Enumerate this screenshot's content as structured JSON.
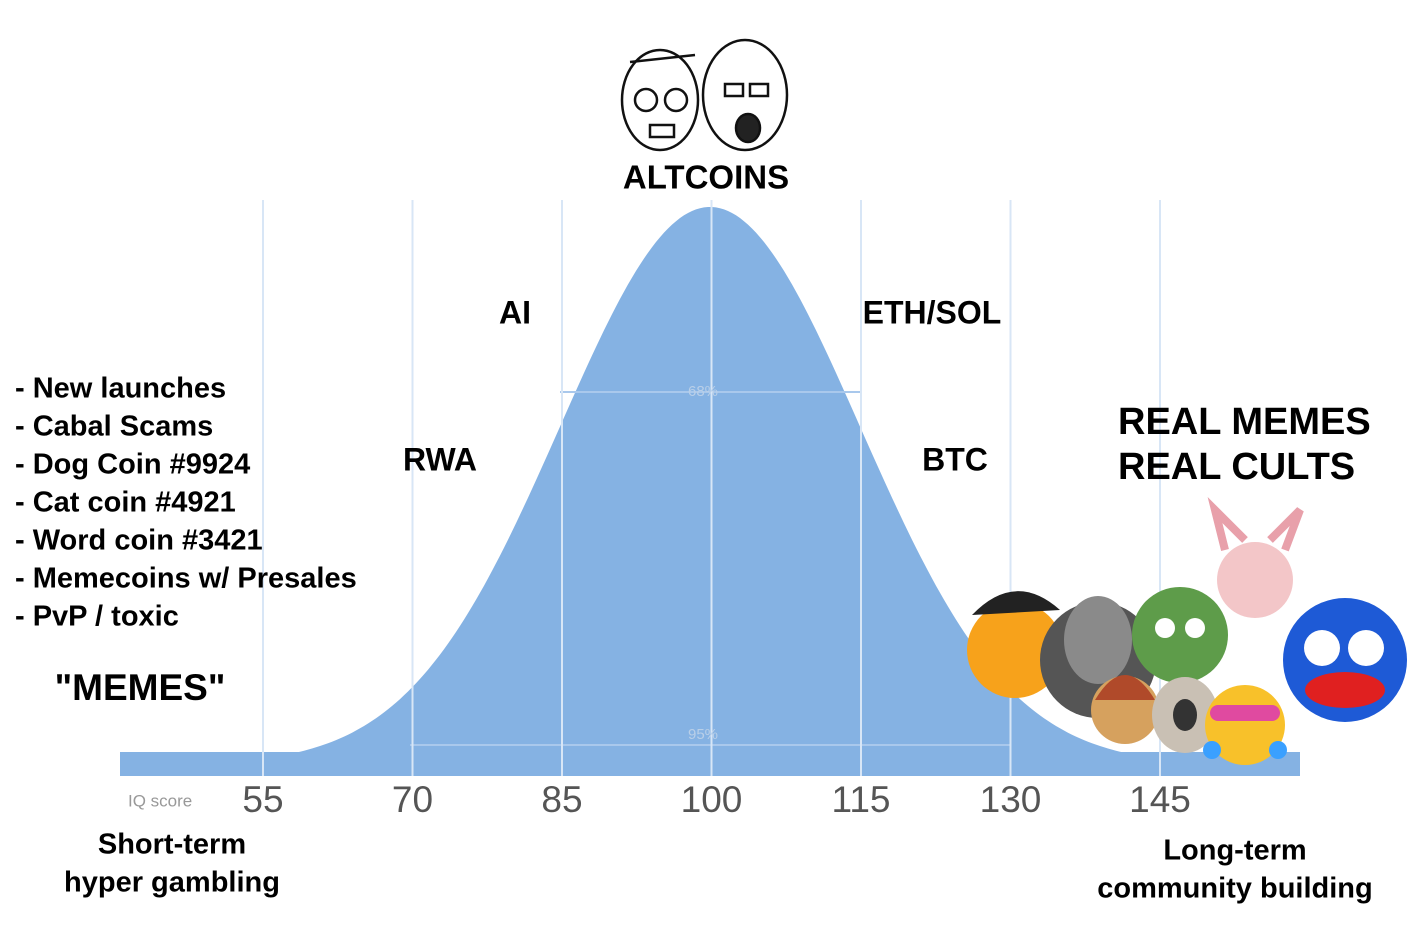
{
  "header": {
    "title": "ALTCOINS"
  },
  "labels": {
    "ai": "AI",
    "eth_sol": "ETH/SOL",
    "rwa": "RWA",
    "btc": "BTC"
  },
  "left_list": [
    "- New launches",
    "- Cabal Scams",
    "- Dog Coin #9924",
    "- Cat coin #4921",
    "- Word coin #3421",
    "- Memecoins w/ Presales",
    "- PvP / toxic"
  ],
  "left_label": "\"MEMES\"",
  "right_label": [
    "REAL MEMES",
    "REAL CULTS"
  ],
  "bands": {
    "inner": "68%",
    "outer": "95%"
  },
  "axis": {
    "label": "IQ score",
    "ticks": [
      "55",
      "70",
      "85",
      "100",
      "115",
      "130",
      "145"
    ]
  },
  "captions": {
    "left": [
      "Short-term",
      "hyper gambling"
    ],
    "right": [
      "Long-term",
      "community building"
    ]
  }
}
